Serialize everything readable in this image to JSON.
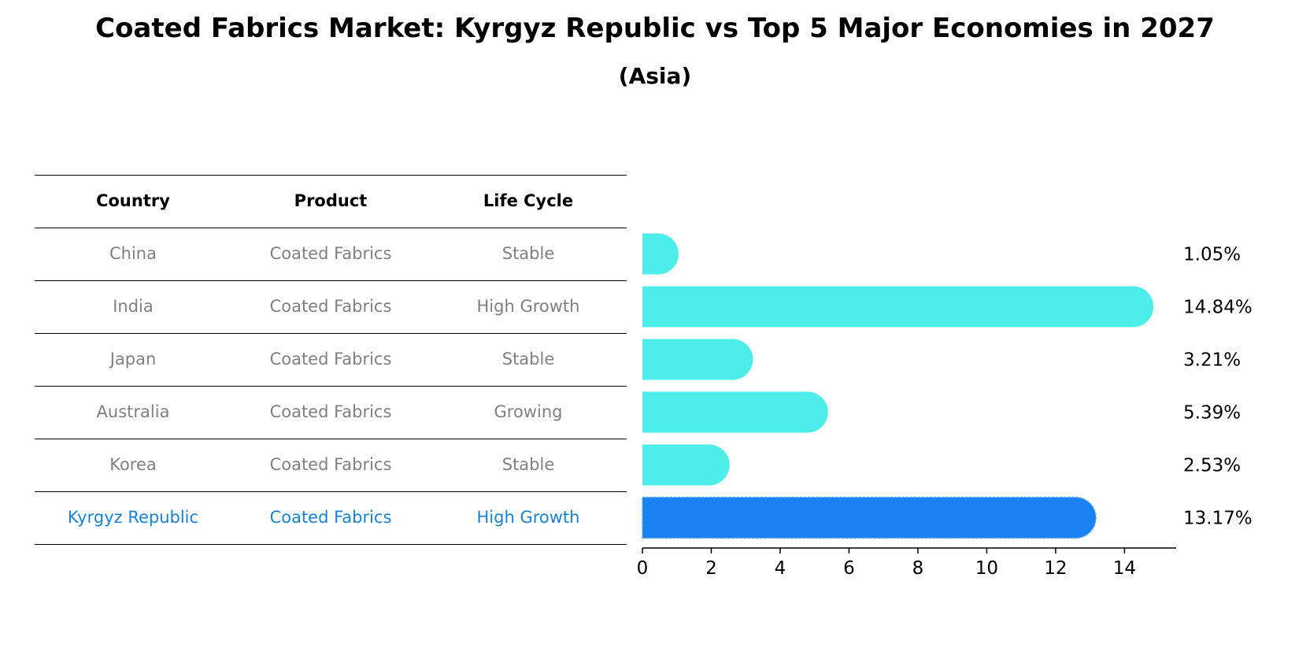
{
  "title": "Coated Fabrics Market: Kyrgyz Republic vs Top 5 Major Economies in 2027",
  "subtitle": "(Asia)",
  "table": {
    "headers": [
      "Country",
      "Product",
      "Life Cycle"
    ],
    "rows": [
      {
        "country": "China",
        "product": "Coated Fabrics",
        "life_cycle": "Stable"
      },
      {
        "country": "India",
        "product": "Coated Fabrics",
        "life_cycle": "High Growth"
      },
      {
        "country": "Japan",
        "product": "Coated Fabrics",
        "life_cycle": "Stable"
      },
      {
        "country": "Australia",
        "product": "Coated Fabrics",
        "life_cycle": "Growing"
      },
      {
        "country": "Korea",
        "product": "Coated Fabrics",
        "life_cycle": "Stable"
      },
      {
        "country": "Kyrgyz Republic",
        "product": "Coated Fabrics",
        "life_cycle": "High Growth"
      }
    ]
  },
  "colors": {
    "bar": "#4deeea",
    "highlight": "#1a82f0",
    "table_text": "#808080",
    "highlight_text": "#1a82d4"
  },
  "chart_data": {
    "type": "bar",
    "orientation": "horizontal",
    "categories": [
      "China",
      "India",
      "Japan",
      "Australia",
      "Korea",
      "Kyrgyz Republic"
    ],
    "values": [
      1.05,
      14.84,
      3.21,
      5.39,
      2.53,
      13.17
    ],
    "value_labels": [
      "1.05%",
      "14.84%",
      "3.21%",
      "5.39%",
      "2.53%",
      "13.17%"
    ],
    "highlight_category": "Kyrgyz Republic",
    "xlim": [
      0,
      15.5
    ],
    "xticks": [
      0,
      2,
      4,
      6,
      8,
      10,
      12,
      14
    ],
    "grid": false
  }
}
